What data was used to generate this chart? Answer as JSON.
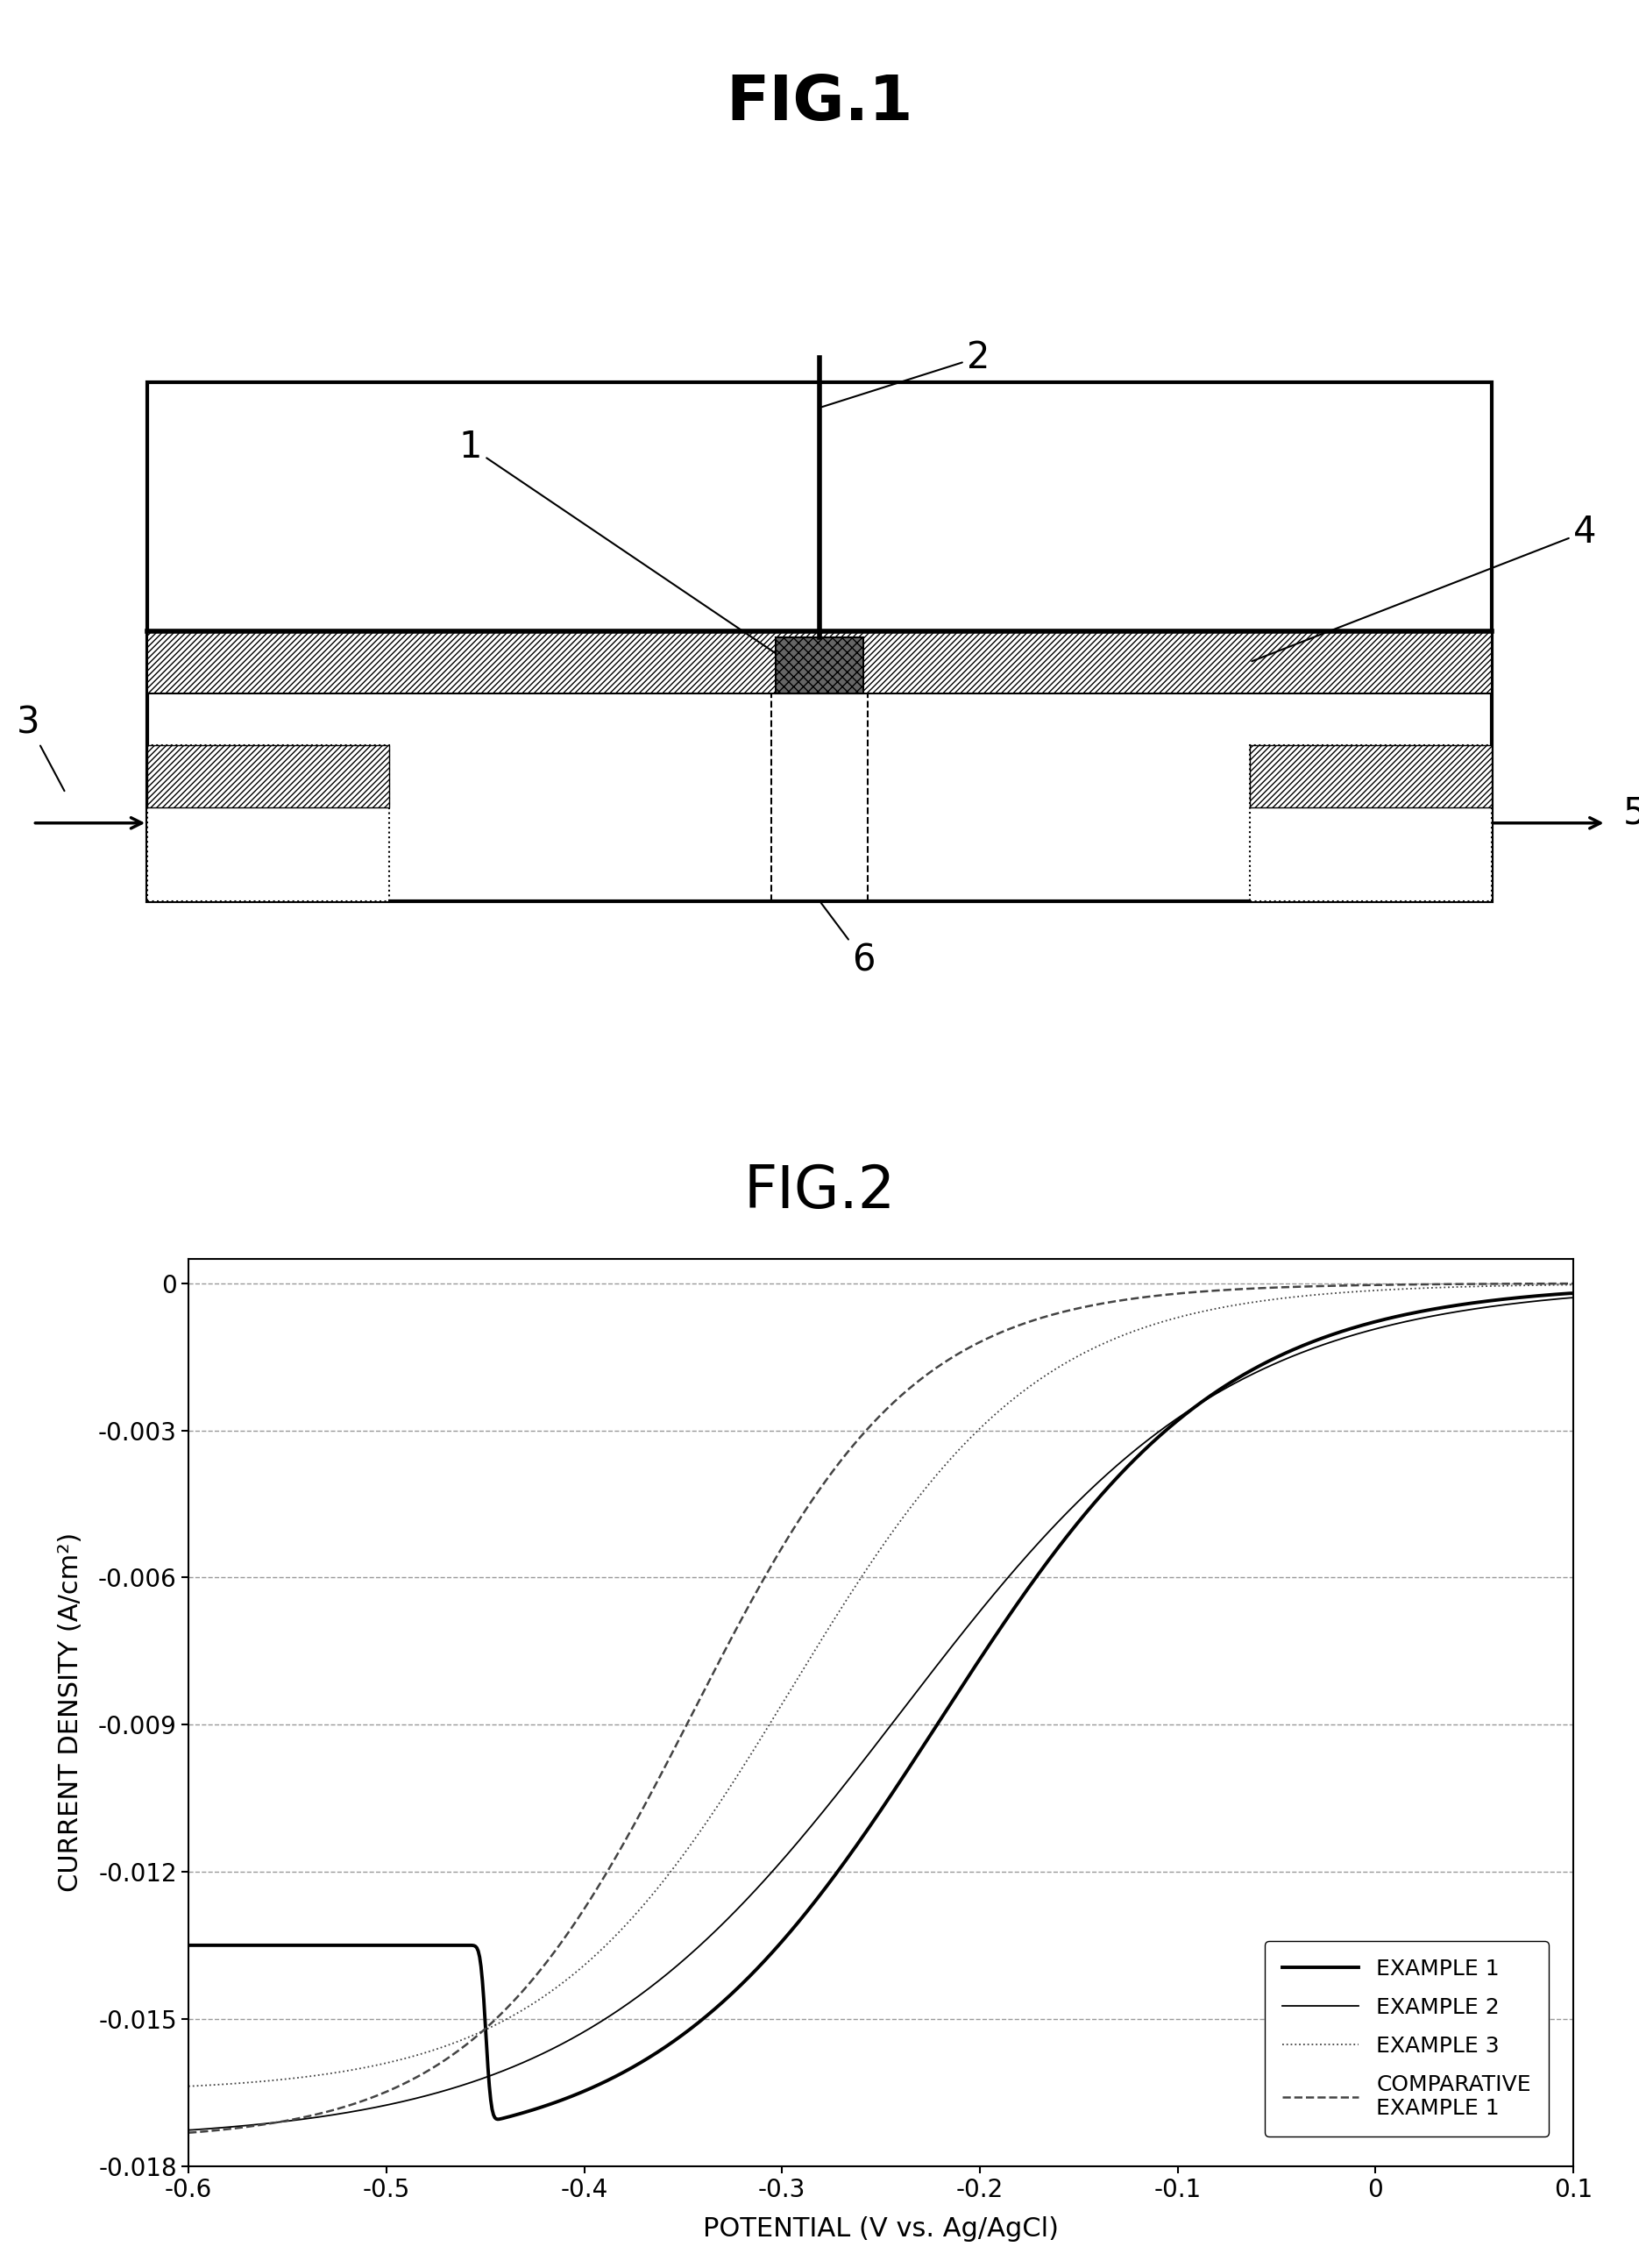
{
  "fig1_title": "FIG.1",
  "fig2_title": "FIG.2",
  "fig_bg": "#ffffff",
  "plot": {
    "xlim": [
      -0.6,
      0.1
    ],
    "ylim": [
      -0.018,
      0.0005
    ],
    "xticks": [
      -0.6,
      -0.5,
      -0.4,
      -0.3,
      -0.2,
      -0.1,
      0.0,
      0.1
    ],
    "yticks": [
      0,
      -0.003,
      -0.006,
      -0.009,
      -0.012,
      -0.015,
      -0.018
    ],
    "xlabel": "POTENTIAL (V vs. Ag/AgCl)",
    "ylabel": "CURRENT DENSITY (A/cm²)",
    "grid_color": "#999999",
    "grid_style": "--",
    "example1_color": "#000000",
    "example1_lw": 2.8,
    "example1_style": "-",
    "example1_label": "EXAMPLE 1",
    "example2_color": "#000000",
    "example2_lw": 1.3,
    "example2_style": "-",
    "example2_label": "EXAMPLE 2",
    "example3_color": "#444444",
    "example3_lw": 1.3,
    "example3_style": ":",
    "example3_label": "EXAMPLE 3",
    "comp_color": "#444444",
    "comp_lw": 1.8,
    "comp_style": "--",
    "comp_label": "COMPARATIVE\nEXAMPLE 1"
  }
}
